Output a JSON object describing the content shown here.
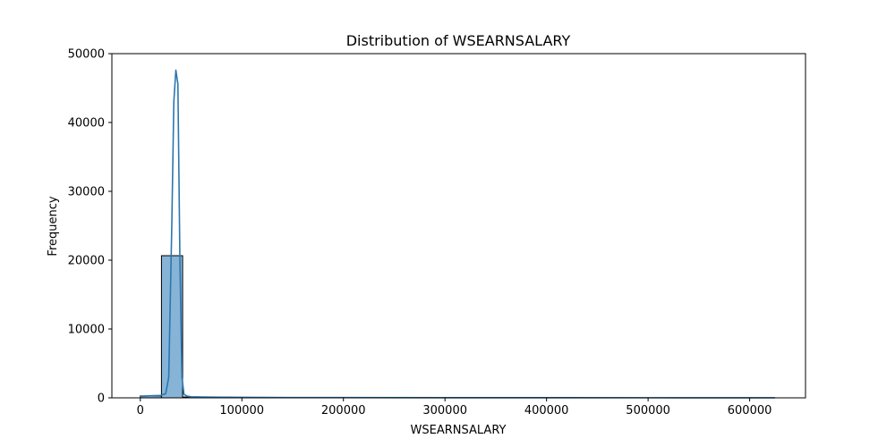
{
  "chart_data": {
    "type": "bar",
    "title": "Distribution of WSEARNSALARY",
    "xlabel": "WSEARNSALARY",
    "ylabel": "Frequency",
    "xlim": [
      -28000,
      655000
    ],
    "ylim": [
      0,
      50000
    ],
    "x_ticks": [
      0,
      100000,
      200000,
      300000,
      400000,
      500000,
      600000
    ],
    "y_ticks": [
      0,
      10000,
      20000,
      30000,
      40000,
      50000
    ],
    "bins": {
      "start": 0,
      "width": 20833,
      "counts": [
        280,
        20650,
        120,
        60,
        40,
        30,
        25,
        20,
        15,
        15,
        12,
        10,
        8,
        8,
        6,
        5,
        5,
        4,
        4,
        3,
        3,
        3,
        2,
        2,
        2,
        2,
        1,
        1,
        1,
        1
      ]
    },
    "kde": {
      "x": [
        0,
        10000,
        20000,
        25000,
        28000,
        31000,
        33000,
        35000,
        37000,
        39000,
        41000,
        43000,
        46000,
        50000,
        60000,
        80000,
        100000,
        150000,
        200000,
        300000,
        400000,
        500000,
        625000
      ],
      "y": [
        200,
        300,
        350,
        600,
        3000,
        25000,
        43000,
        47600,
        45600,
        20000,
        3000,
        500,
        250,
        150,
        120,
        90,
        70,
        50,
        40,
        30,
        20,
        15,
        10
      ]
    },
    "colors": {
      "bar_fill": "#87b4d6",
      "bar_edge": "#000000",
      "kde_line": "#2a77b0"
    }
  }
}
